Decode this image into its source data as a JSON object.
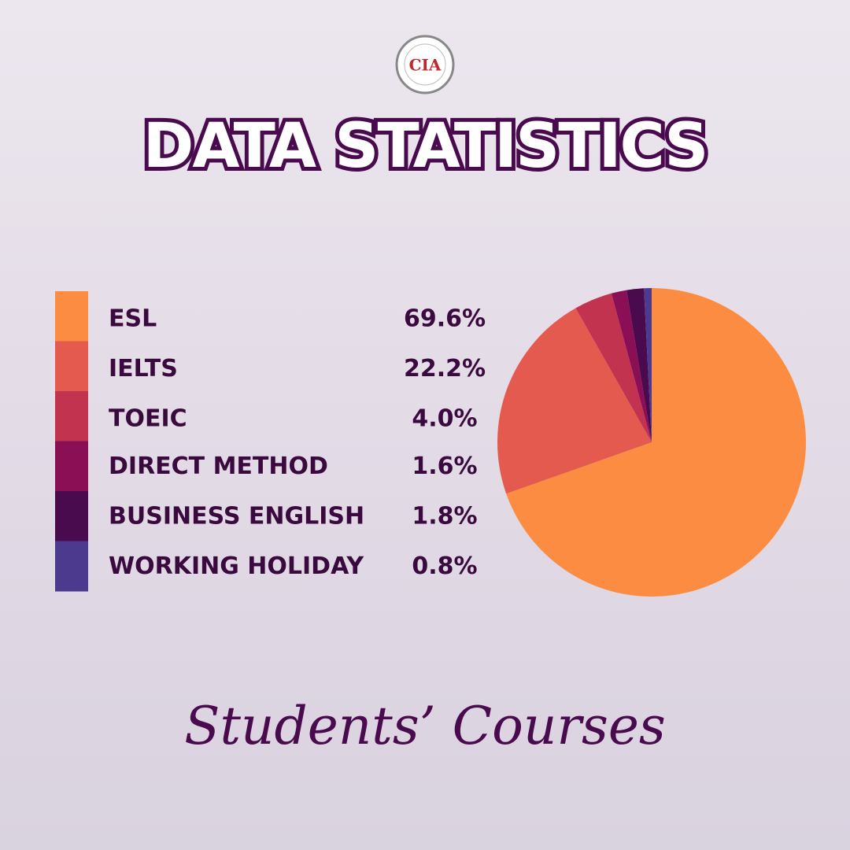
{
  "logo": "CIA",
  "chart_data": {
    "type": "pie",
    "title": "DATA STATISTICS",
    "subtitle": "Students’ Courses",
    "categories": [
      "ESL",
      "IELTS",
      "TOEIC",
      "DIRECT METHOD",
      "BUSINESS ENGLISH",
      "WORKING HOLIDAY"
    ],
    "values": [
      69.6,
      22.2,
      4.0,
      1.6,
      1.8,
      0.8
    ],
    "value_labels": [
      "69.6%",
      "22.2%",
      "4.0%",
      "1.6%",
      "1.8%",
      "0.8%"
    ],
    "colors": [
      "#fb8c42",
      "#e45a4e",
      "#c2334f",
      "#8a0f55",
      "#4a0a4e",
      "#4b3a8e"
    ]
  }
}
